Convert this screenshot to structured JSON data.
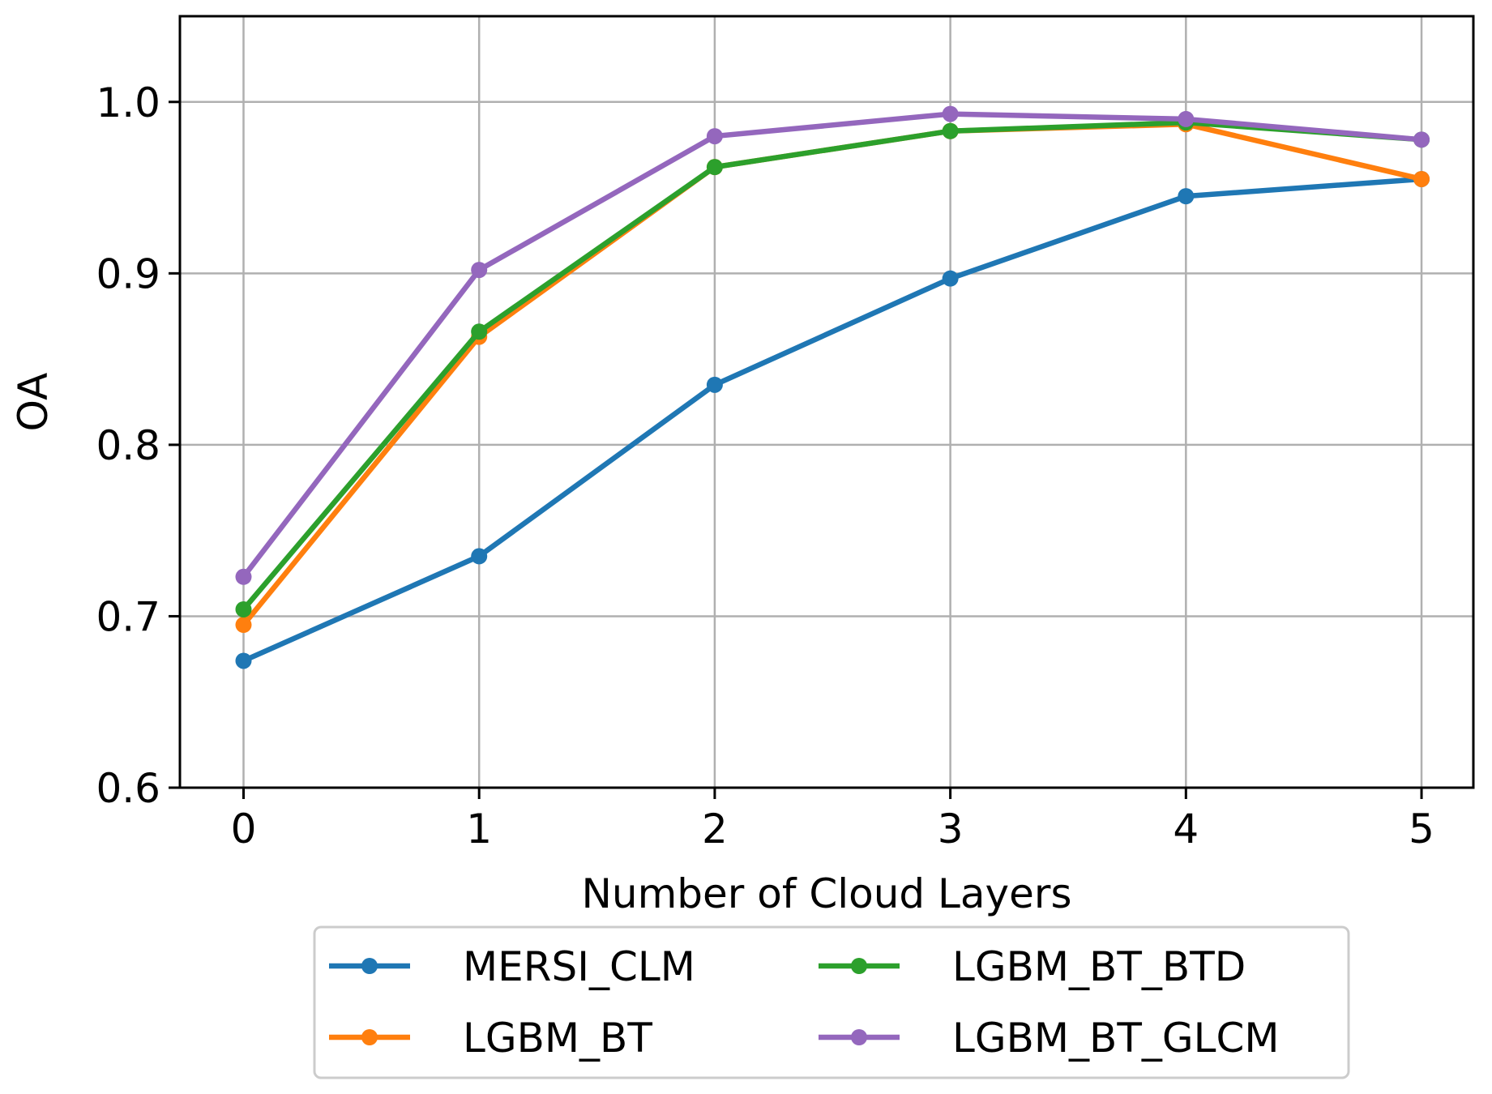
{
  "chart_data": {
    "type": "line",
    "title": "",
    "xlabel": "Number of Cloud Layers",
    "ylabel": "OA",
    "x": [
      0,
      1,
      2,
      3,
      4,
      5
    ],
    "xlim": [
      -0.27,
      5.22
    ],
    "ylim": [
      0.6,
      1.05
    ],
    "xticks": [
      "0",
      "1",
      "2",
      "3",
      "4",
      "5"
    ],
    "yticks": [
      "0.6",
      "0.7",
      "0.8",
      "0.9",
      "1.0"
    ],
    "grid": true,
    "legend_position": "below plot, two columns",
    "series": [
      {
        "name": "MERSI_CLM",
        "color": "#1f77b4",
        "values": [
          0.674,
          0.735,
          0.835,
          0.897,
          0.945,
          0.955
        ]
      },
      {
        "name": "LGBM_BT",
        "color": "#ff7f0e",
        "values": [
          0.695,
          0.863,
          0.962,
          0.983,
          0.987,
          0.955
        ]
      },
      {
        "name": "LGBM_BT_BTD",
        "color": "#2ca02c",
        "values": [
          0.704,
          0.866,
          0.962,
          0.983,
          0.988,
          0.978
        ]
      },
      {
        "name": "LGBM_BT_GLCM",
        "color": "#9467bd",
        "values": [
          0.723,
          0.902,
          0.98,
          0.993,
          0.99,
          0.978
        ]
      }
    ]
  }
}
